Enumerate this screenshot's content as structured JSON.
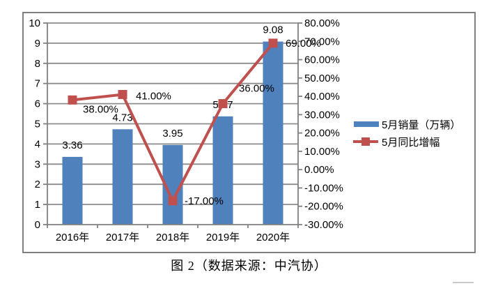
{
  "window": {
    "background": "#ffffff"
  },
  "chart_data": {
    "type": "combo-bar-line",
    "title": "",
    "categories": [
      "2016年",
      "2017年",
      "2018年",
      "2019年",
      "2020年"
    ],
    "series": [
      {
        "name": "5月销量（万辆）",
        "type": "bar",
        "axis": "left",
        "color": "#4F81BD",
        "values": [
          3.36,
          4.73,
          3.95,
          5.37,
          9.08
        ],
        "labels": [
          "3.36",
          "4.73",
          "3.95",
          "5.37",
          "9.08"
        ]
      },
      {
        "name": "5月同比增幅",
        "type": "line",
        "axis": "right",
        "marker": "square",
        "color": "#C0504D",
        "values": [
          38,
          41,
          -17,
          36,
          69
        ],
        "labels": [
          "38.00%",
          "41.00%",
          "-17.00%",
          "36.00%",
          "69.00%"
        ]
      }
    ],
    "left_axis": {
      "min": 0,
      "max": 10,
      "step": 1,
      "tick_labels": [
        "0",
        "1",
        "2",
        "3",
        "4",
        "5",
        "6",
        "7",
        "8",
        "9",
        "10"
      ]
    },
    "right_axis": {
      "min": -30,
      "max": 80,
      "step": 10,
      "tick_labels": [
        "-30.00%",
        "-20.00%",
        "-10.00%",
        "0.00%",
        "10.00%",
        "20.00%",
        "30.00%",
        "40.00%",
        "50.00%",
        "60.00%",
        "70.00%",
        "80.00%"
      ]
    },
    "grid": true,
    "legend": {
      "position": "right-middle",
      "entries": [
        {
          "label": "5月销量（万辆）",
          "marker": "bar",
          "color": "#4F81BD"
        },
        {
          "label": "5月同比增幅",
          "marker": "line-square",
          "color": "#C0504D"
        }
      ]
    },
    "colors": {
      "gridline": "#8C8C8C",
      "axis": "#808080",
      "frame_border": "#808080",
      "text": "#000000",
      "bar": "#4F81BD",
      "line": "#C0504D"
    }
  },
  "caption": {
    "text": "图 2（数据来源：中汽协）"
  }
}
